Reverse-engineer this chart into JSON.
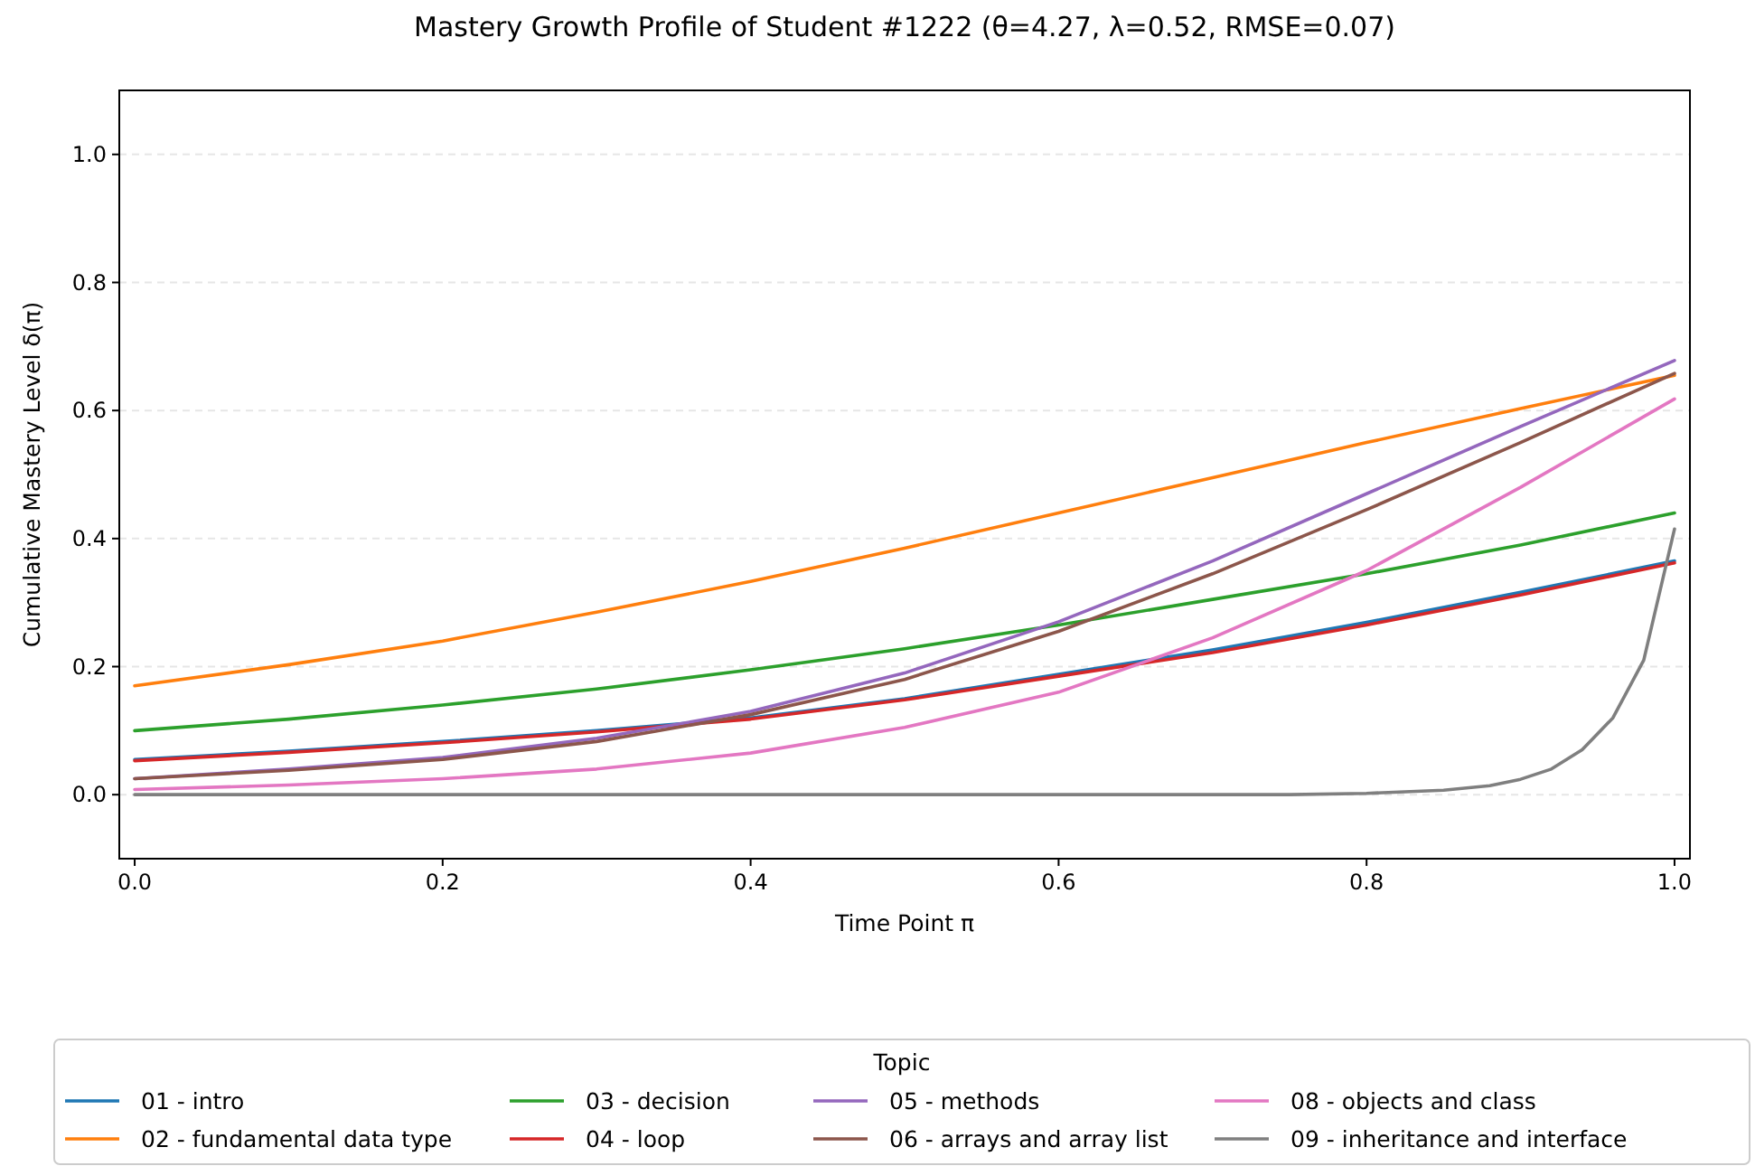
{
  "chart_data": {
    "type": "line",
    "title": "Mastery Growth Profile of Student #1222 (θ=4.27, λ=0.52, RMSE=0.07)",
    "xlabel": "Time Point π",
    "ylabel": "Cumulative Mastery Level δ(π)",
    "legend_title": "Topic",
    "legend": "bottom",
    "grid": "y",
    "line_style": "solid",
    "marker": "none",
    "x": [
      0,
      0.1,
      0.2,
      0.3,
      0.4,
      0.5,
      0.6,
      0.7,
      0.8,
      0.9,
      1
    ],
    "xlim": [
      -0.01,
      1.01
    ],
    "ylim": [
      -0.1,
      1.1
    ],
    "xticks": [
      {
        "value": 0,
        "label": "0.0"
      },
      {
        "value": 0.2,
        "label": "0.2"
      },
      {
        "value": 0.4,
        "label": "0.4"
      },
      {
        "value": 0.6,
        "label": "0.6"
      },
      {
        "value": 0.8,
        "label": "0.8"
      },
      {
        "value": 1,
        "label": "1.0"
      }
    ],
    "yticks": [
      {
        "value": 0,
        "label": "0.0"
      },
      {
        "value": 0.2,
        "label": "0.2"
      },
      {
        "value": 0.4,
        "label": "0.4"
      },
      {
        "value": 0.6,
        "label": "0.6"
      },
      {
        "value": 0.8,
        "label": "0.8"
      },
      {
        "value": 1,
        "label": "1.0"
      }
    ],
    "series": [
      {
        "name": "01 - intro",
        "color": "#1f77b4",
        "values": [
          0.055,
          0.068,
          0.083,
          0.1,
          0.12,
          0.15,
          0.188,
          0.226,
          0.269,
          0.316,
          0.365
        ]
      },
      {
        "name": "02 - fundamental data type",
        "color": "#ff7f0e",
        "values": [
          0.17,
          0.203,
          0.24,
          0.285,
          0.333,
          0.385,
          0.44,
          0.495,
          0.55,
          0.603,
          0.655
        ]
      },
      {
        "name": "03 - decision",
        "color": "#2ca02c",
        "values": [
          0.1,
          0.118,
          0.14,
          0.165,
          0.195,
          0.228,
          0.265,
          0.305,
          0.345,
          0.39,
          0.44
        ]
      },
      {
        "name": "04 - loop",
        "color": "#d62728",
        "values": [
          0.053,
          0.066,
          0.081,
          0.098,
          0.118,
          0.148,
          0.185,
          0.222,
          0.265,
          0.312,
          0.362
        ]
      },
      {
        "name": "05 - methods",
        "color": "#9467bd",
        "values": [
          0.025,
          0.04,
          0.058,
          0.088,
          0.13,
          0.19,
          0.27,
          0.365,
          0.47,
          0.575,
          0.678
        ]
      },
      {
        "name": "06 - arrays and array list",
        "color": "#8c564b",
        "values": [
          0.025,
          0.038,
          0.055,
          0.083,
          0.125,
          0.18,
          0.255,
          0.345,
          0.445,
          0.55,
          0.658
        ]
      },
      {
        "name": "08 - objects and class",
        "color": "#e377c2",
        "values": [
          0.008,
          0.015,
          0.025,
          0.04,
          0.065,
          0.105,
          0.16,
          0.245,
          0.35,
          0.48,
          0.618
        ]
      },
      {
        "name": "09 - inheritance and interface",
        "color": "#7f7f7f",
        "x": [
          0,
          0.5,
          0.75,
          0.8,
          0.85,
          0.88,
          0.9,
          0.92,
          0.94,
          0.96,
          0.98,
          1
        ],
        "values": [
          0,
          0,
          0,
          0.002,
          0.007,
          0.014,
          0.024,
          0.04,
          0.07,
          0.12,
          0.21,
          0.415
        ]
      }
    ]
  }
}
